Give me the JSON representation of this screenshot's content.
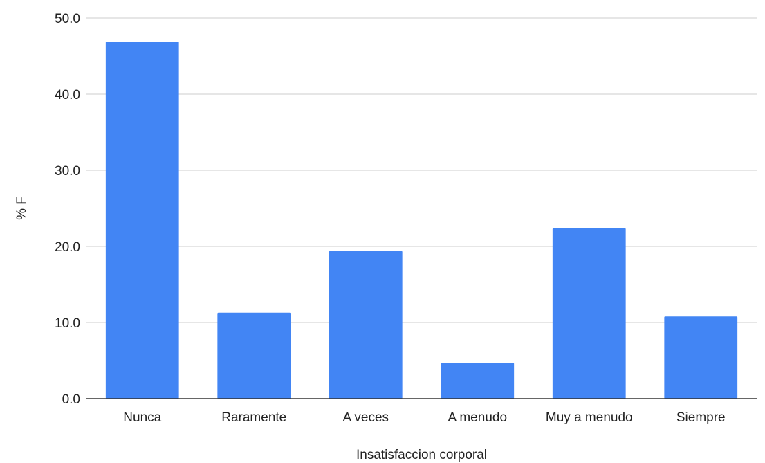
{
  "chart_data": {
    "type": "bar",
    "title": "",
    "xlabel": "Insatisfaccion corporal",
    "ylabel": "% F",
    "categories": [
      "Nunca",
      "Raramente",
      "A veces",
      "A menudo",
      "Muy a menudo",
      "Siempre"
    ],
    "series": [
      {
        "values": [
          46.9,
          11.3,
          19.4,
          4.7,
          22.4,
          10.8
        ]
      }
    ],
    "ylim": [
      0,
      50
    ],
    "yticks": [
      "0.0",
      "10.0",
      "20.0",
      "30.0",
      "40.0",
      "50.0"
    ],
    "grid": true,
    "legend": "none",
    "colors": {
      "bar": "#4285f4",
      "grid": "#cccccc",
      "axis": "#333333"
    }
  }
}
